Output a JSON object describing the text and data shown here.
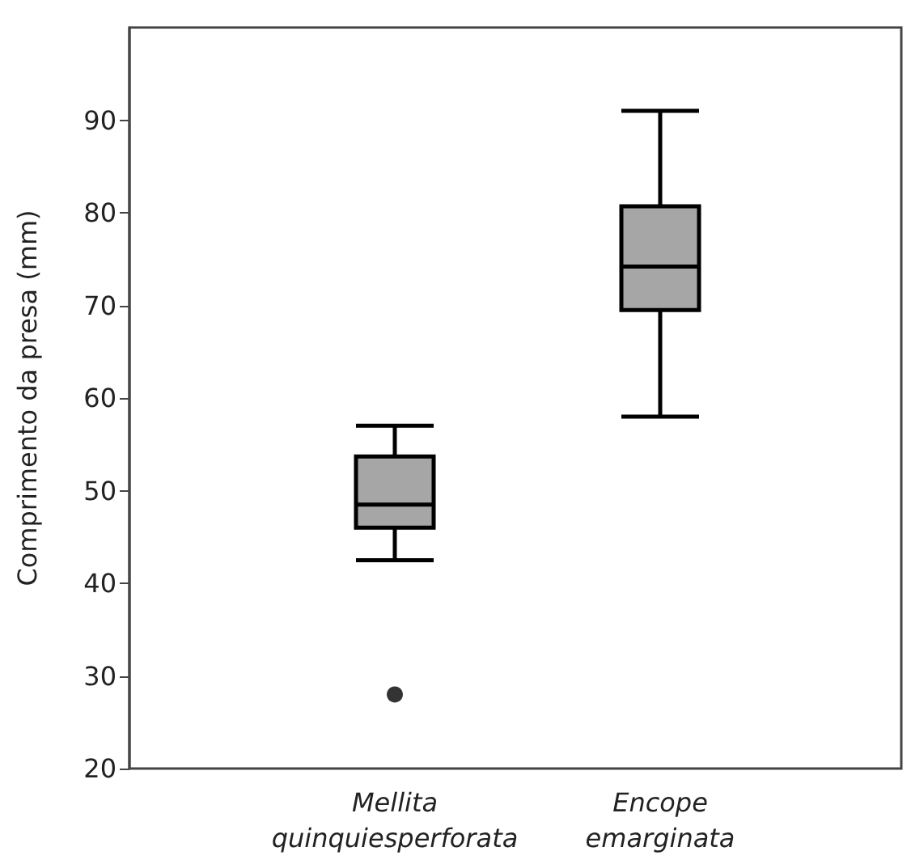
{
  "chart_data": {
    "type": "box",
    "ylabel": "Comprimento da presa (mm)",
    "categories": [
      "Mellita quinquiesperforata",
      "Encope emarginata"
    ],
    "boxes": [
      {
        "low": 42.5,
        "q1": 46,
        "median": 48.5,
        "q3": 53.7,
        "high": 57,
        "outliers": [
          28
        ]
      },
      {
        "low": 58,
        "q1": 69.5,
        "median": 74.2,
        "q3": 80.7,
        "high": 91
      }
    ],
    "color": "#a6a6a6",
    "ylim": [
      20,
      100
    ],
    "yticks": [
      20,
      30,
      40,
      50,
      60,
      70,
      80,
      90
    ],
    "grid": false
  }
}
